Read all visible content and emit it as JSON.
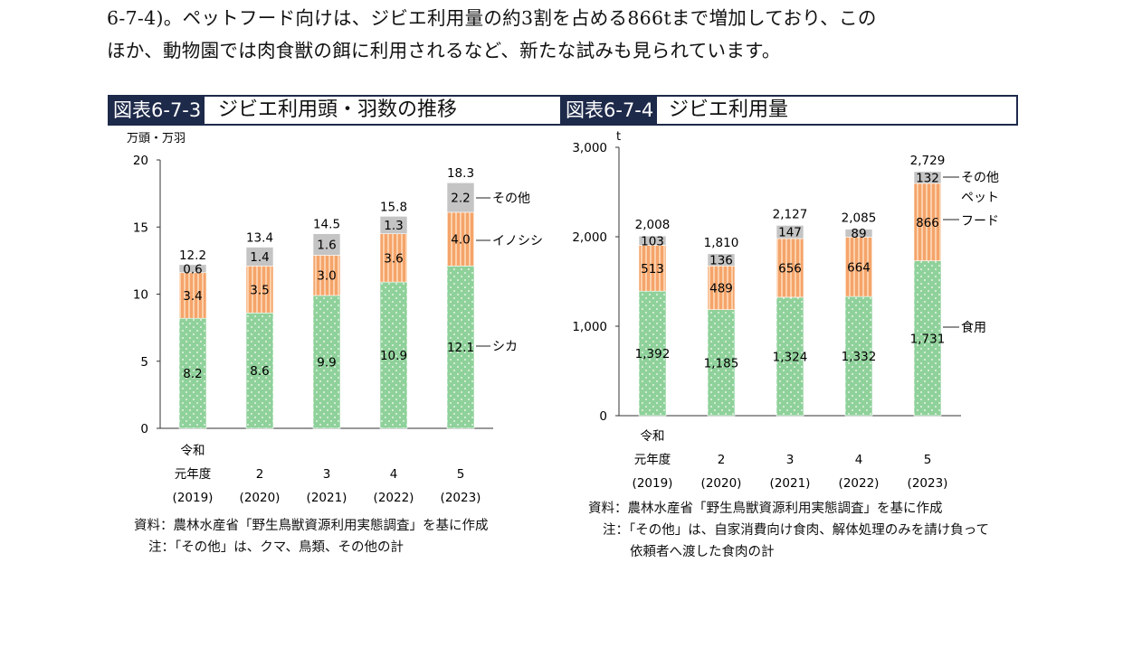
{
  "intro": {
    "line1": "6-7-4)。ペットフード向けは、ジビエ利用量の約3割を占める866tまで増加しており、この",
    "line2": "ほか、動物園では肉食獣の餌に利用されるなど、新たな試みも見られています。"
  },
  "fig1": {
    "number": "図表6-7-3",
    "title": "ジビエ利用頭・羽数の推移",
    "unit": "万頭・万羽",
    "source": "資料：農林水産省「野生鳥獣資源利用実態調査」を基に作成",
    "note": "注：「その他」は、クマ、鳥類、その他の計"
  },
  "fig2": {
    "number": "図表6-7-4",
    "title": "ジビエ利用量",
    "unit": "t",
    "source": "資料：農林水産省「野生鳥獣資源利用実態調査」を基に作成",
    "note_line1": "注：「その他」は、自家消費向け食肉、解体処理のみを請け負って",
    "note_line2": "依頼者へ渡した食肉の計"
  },
  "colors": {
    "bottom": "#8fd19a",
    "middle": "#f5a46a",
    "middle_stripe": "#fbd0ab",
    "top": "#c4c4c4",
    "axis": "#333333",
    "title_box": "#1e2a4a"
  },
  "chart_data": [
    {
      "type": "bar",
      "stacked": true,
      "categories": [
        [
          "令和",
          "元年度",
          "(2019)"
        ],
        [
          "",
          "2",
          "(2020)"
        ],
        [
          "",
          "3",
          "(2021)"
        ],
        [
          "",
          "4",
          "(2022)"
        ],
        [
          "",
          "5",
          "(2023)"
        ]
      ],
      "series": [
        {
          "name": "シカ",
          "values": [
            8.2,
            8.6,
            9.9,
            10.9,
            12.1
          ],
          "labels": [
            "8.2",
            "8.6",
            "9.9",
            "10.9",
            "12.1"
          ]
        },
        {
          "name": "イノシシ",
          "values": [
            3.4,
            3.5,
            3.0,
            3.6,
            4.0
          ],
          "labels": [
            "3.4",
            "3.5",
            "3.0",
            "3.6",
            "4.0"
          ]
        },
        {
          "name": "その他",
          "values": [
            0.6,
            1.4,
            1.6,
            1.3,
            2.2
          ],
          "labels": [
            "0.6",
            "1.4",
            "1.6",
            "1.3",
            "2.2"
          ]
        }
      ],
      "totals": [
        "12.2",
        "13.4",
        "14.5",
        "15.8",
        "18.3"
      ],
      "ylabel": "万頭・万羽",
      "ylim": [
        0,
        20
      ],
      "yticks": [
        0,
        5,
        10,
        15,
        20
      ],
      "ytick_labels": [
        "0",
        "5",
        "10",
        "15",
        "20"
      ],
      "grid": false,
      "legend": "inline-right"
    },
    {
      "type": "bar",
      "stacked": true,
      "categories": [
        [
          "令和",
          "元年度",
          "(2019)"
        ],
        [
          "",
          "2",
          "(2020)"
        ],
        [
          "",
          "3",
          "(2021)"
        ],
        [
          "",
          "4",
          "(2022)"
        ],
        [
          "",
          "5",
          "(2023)"
        ]
      ],
      "series": [
        {
          "name": "食用",
          "values": [
            1392,
            1185,
            1324,
            1332,
            1731
          ],
          "labels": [
            "1,392",
            "1,185",
            "1,324",
            "1,332",
            "1,731"
          ]
        },
        {
          "name": "ペットフード",
          "name_lines": [
            "ペット",
            "フード"
          ],
          "values": [
            513,
            489,
            656,
            664,
            866
          ],
          "labels": [
            "513",
            "489",
            "656",
            "664",
            "866"
          ]
        },
        {
          "name": "その他",
          "values": [
            103,
            136,
            147,
            89,
            132
          ],
          "labels": [
            "103",
            "136",
            "147",
            "89",
            "132"
          ]
        }
      ],
      "totals": [
        "2,008",
        "1,810",
        "2,127",
        "2,085",
        "2,729"
      ],
      "ylabel": "t",
      "ylim": [
        0,
        3000
      ],
      "yticks": [
        0,
        1000,
        2000,
        3000
      ],
      "ytick_labels": [
        "0",
        "1,000",
        "2,000",
        "3,000"
      ],
      "grid": false,
      "legend": "inline-right"
    }
  ]
}
